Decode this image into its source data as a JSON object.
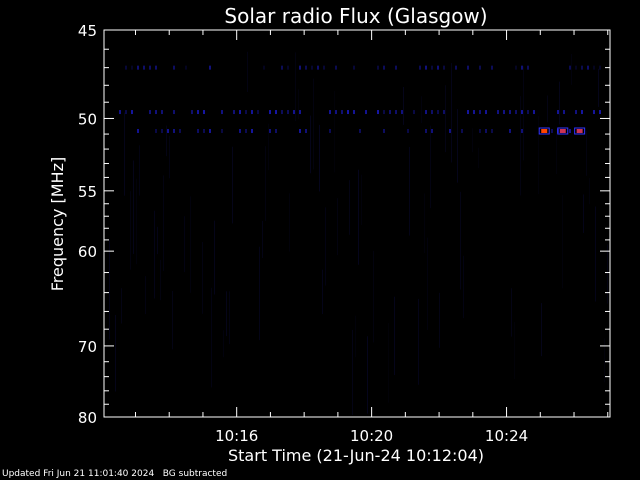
{
  "chart_data": {
    "type": "heatmap",
    "title": "Solar radio Flux (Glasgow)",
    "xlabel": "Start Time (21-Jun-24 10:12:04)",
    "ylabel": "Frequency [MHz]",
    "x_range": [
      "10:12:04",
      "10:27:04"
    ],
    "y_range": [
      45,
      80
    ],
    "y_ticks": [
      45,
      50,
      55,
      60,
      70,
      80
    ],
    "x_ticks": [
      "10:16",
      "10:20",
      "10:24"
    ],
    "background_color": "#000000",
    "colors": {
      "low": "#000033",
      "mid": "#0000ff",
      "high": "#ff4400"
    },
    "features": [
      {
        "kind": "band",
        "freq": 49.6,
        "intensity": 0.45
      },
      {
        "kind": "band",
        "freq": 50.8,
        "intensity": 0.35
      },
      {
        "kind": "band",
        "freq": 47.0,
        "intensity": 0.2
      },
      {
        "kind": "hotspot",
        "time": "10:25:07",
        "freq": 50.8,
        "intensity": 1.0
      },
      {
        "kind": "hotspot",
        "time": "10:25:40",
        "freq": 50.8,
        "intensity": 0.7
      },
      {
        "kind": "hotspot",
        "time": "10:26:10",
        "freq": 50.8,
        "intensity": 0.8
      }
    ]
  },
  "footer": {
    "updated": "Updated Fri Jun 21 11:01:40 2024",
    "note": "BG subtracted"
  }
}
